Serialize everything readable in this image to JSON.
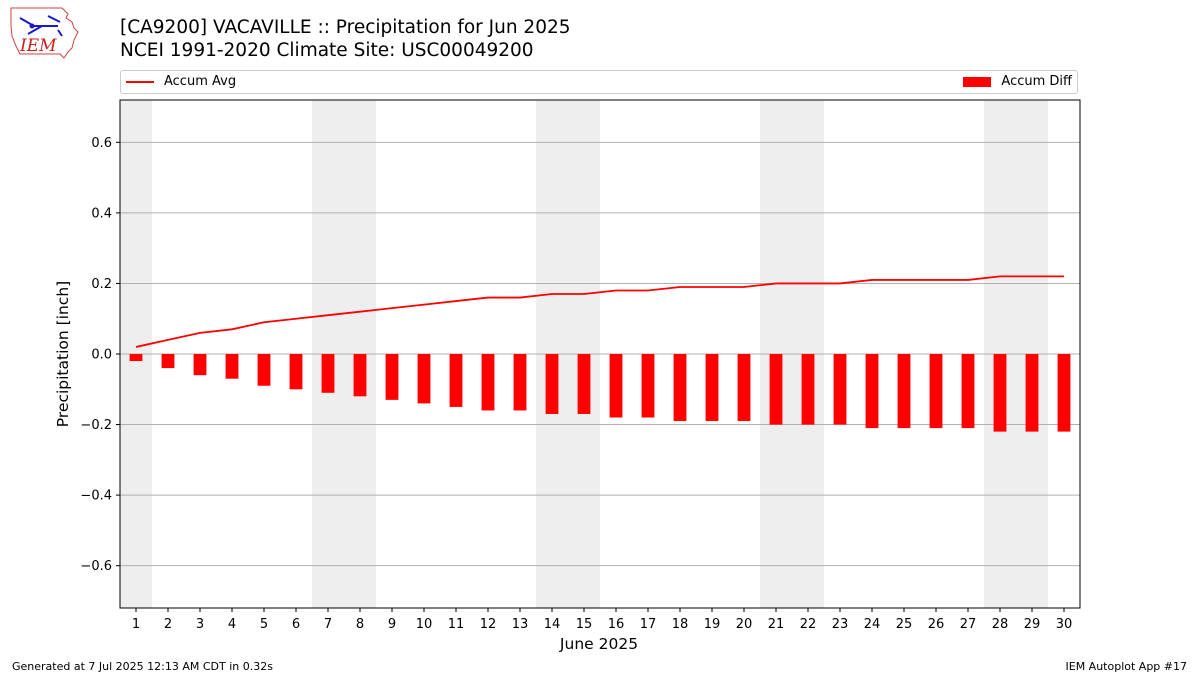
{
  "logo": {
    "text": "IEM"
  },
  "chart_data": {
    "type": "bar",
    "title": "[CA9200] VACAVILLE :: Precipitation for Jun 2025",
    "subtitle": "NCEI 1991-2020 Climate Site: USC00049200",
    "xlabel": "June 2025",
    "ylabel": "Precipitation [inch]",
    "ylim": [
      -0.72,
      0.72
    ],
    "yticks": [
      -0.6,
      -0.4,
      -0.2,
      0.0,
      0.2,
      0.4,
      0.6
    ],
    "ytick_labels": [
      "−0.6",
      "−0.4",
      "−0.2",
      "0.0",
      "0.2",
      "0.4",
      "0.6"
    ],
    "grid": "horizontal",
    "legend_placement": "top",
    "x": [
      1,
      2,
      3,
      4,
      5,
      6,
      7,
      8,
      9,
      10,
      11,
      12,
      13,
      14,
      15,
      16,
      17,
      18,
      19,
      20,
      21,
      22,
      23,
      24,
      25,
      26,
      27,
      28,
      29,
      30
    ],
    "xtick_labels": [
      "1",
      "2",
      "3",
      "4",
      "5",
      "6",
      "7",
      "8",
      "9",
      "10",
      "11",
      "12",
      "13",
      "14",
      "15",
      "16",
      "17",
      "18",
      "19",
      "20",
      "21",
      "22",
      "23",
      "24",
      "25",
      "26",
      "27",
      "28",
      "29",
      "30"
    ],
    "weekend_days": [
      1,
      7,
      8,
      14,
      15,
      21,
      22,
      28,
      29
    ],
    "series": [
      {
        "name": "Accum Avg",
        "kind": "line",
        "color": "#ff0000",
        "values": [
          0.02,
          0.04,
          0.06,
          0.07,
          0.09,
          0.1,
          0.11,
          0.12,
          0.13,
          0.14,
          0.15,
          0.16,
          0.16,
          0.17,
          0.17,
          0.18,
          0.18,
          0.19,
          0.19,
          0.19,
          0.2,
          0.2,
          0.2,
          0.21,
          0.21,
          0.21,
          0.21,
          0.22,
          0.22,
          0.22
        ]
      },
      {
        "name": "Accum Diff",
        "kind": "bar",
        "color": "#ff0000",
        "values": [
          -0.02,
          -0.04,
          -0.06,
          -0.07,
          -0.09,
          -0.1,
          -0.11,
          -0.12,
          -0.13,
          -0.14,
          -0.15,
          -0.16,
          -0.16,
          -0.17,
          -0.17,
          -0.18,
          -0.18,
          -0.19,
          -0.19,
          -0.19,
          -0.2,
          -0.2,
          -0.2,
          -0.21,
          -0.21,
          -0.21,
          -0.21,
          -0.22,
          -0.22,
          -0.22
        ]
      }
    ]
  },
  "footer": {
    "left": "Generated at 7 Jul 2025 12:13 AM CDT in 0.32s",
    "right": "IEM Autoplot App #17"
  }
}
